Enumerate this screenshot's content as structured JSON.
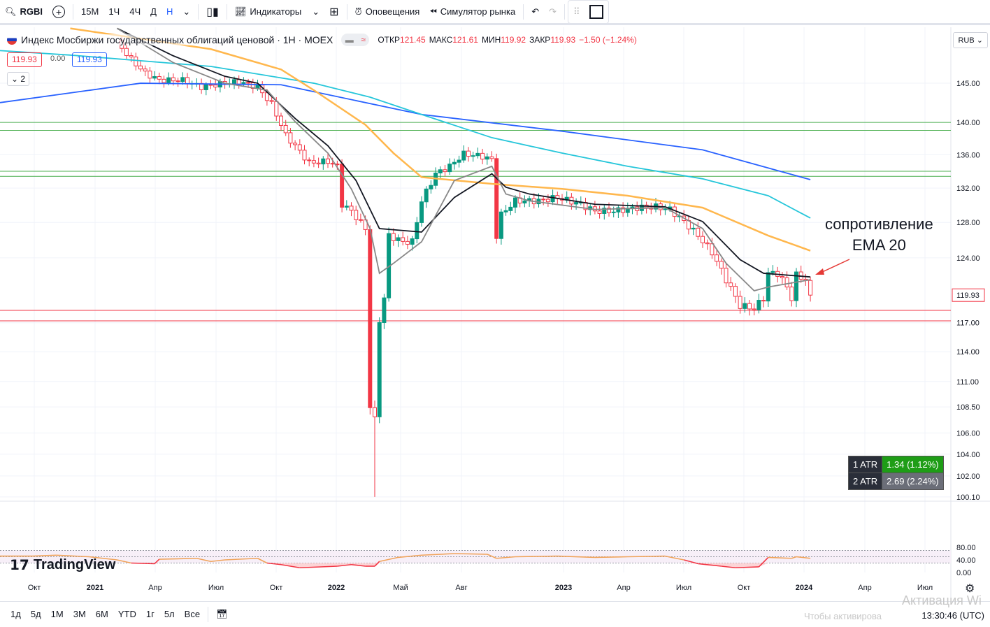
{
  "toolbar": {
    "symbol": "RGBI",
    "intervals": [
      "15M",
      "1Ч",
      "4Ч",
      "Д",
      "Н"
    ],
    "active_interval": "Н",
    "indicators": "Индикаторы",
    "alerts": "Оповещения",
    "replay": "Симулятор рынка"
  },
  "legend": {
    "title": "Индекс Мосбиржи государственных облигаций ценовой · 1Н · MOEX",
    "open_label": "ОТКР",
    "open": "121.45",
    "high_label": "МАКС",
    "high": "121.61",
    "low_label": "МИН",
    "low": "119.92",
    "close_label": "ЗАКР",
    "close": "119.93",
    "change": "−1.50 (−1.24%)",
    "sell": "119.93",
    "spread": "0.00",
    "buy": "119.93",
    "collapse": "2",
    "currency": "RUB"
  },
  "price_axis": [
    "145.00",
    "140.00",
    "136.00",
    "132.00",
    "128.00",
    "124.00",
    "117.00",
    "114.00",
    "111.00",
    "108.50",
    "106.00",
    "104.00",
    "102.00",
    "100.10"
  ],
  "price_axis_values": [
    145,
    140,
    136,
    132,
    128,
    124,
    117,
    114,
    111,
    108.5,
    106,
    104,
    102,
    100.1
  ],
  "last_price": "119.93",
  "rsi_axis": [
    "80.00",
    "40.00",
    "0.00"
  ],
  "time_axis": [
    "Окт",
    "2021",
    "Апр",
    "Июл",
    "Окт",
    "2022",
    "Май",
    "Авг",
    "2023",
    "Апр",
    "Июл",
    "Окт",
    "2024",
    "Апр",
    "Июл"
  ],
  "atr": [
    {
      "label": "1 ATR",
      "value": "1.34 (1.12%)",
      "color": "#1e9d16"
    },
    {
      "label": "2 ATR",
      "value": "2.69 (2.24%)",
      "color": "#6b6e78"
    }
  ],
  "annotation": [
    "сопротивление",
    "EMA 20"
  ],
  "brand": "TradingView",
  "bottom": {
    "ranges": [
      "1д",
      "5д",
      "1М",
      "3М",
      "6М",
      "YTD",
      "1г",
      "5л",
      "Все"
    ],
    "clock": "13:30:46 (UTC)"
  },
  "watermark": [
    "Активация Wi",
    "Чтобы активирова"
  ],
  "colors": {
    "up": "#089981",
    "down": "#f23645",
    "ema200": "#2962ff",
    "ema100": "#26c6da",
    "ema50": "#ffb74d",
    "ema20": "#131722",
    "ema10": "#888888"
  },
  "chart_data": {
    "type": "candlestick",
    "closes_keypoints": [
      [
        25,
        150.4
      ],
      [
        28,
        148.1
      ],
      [
        31,
        146.3
      ],
      [
        34,
        145.4
      ],
      [
        39,
        145.4
      ],
      [
        43,
        144.5
      ],
      [
        48,
        145
      ],
      [
        51,
        145.2
      ],
      [
        55,
        144.5
      ],
      [
        58,
        142.3
      ],
      [
        61,
        138.4
      ],
      [
        63,
        137.1
      ],
      [
        66,
        135
      ],
      [
        70,
        135.2
      ],
      [
        72,
        134.6
      ],
      [
        73,
        130.1
      ],
      [
        75,
        129.3
      ],
      [
        78,
        127.3
      ],
      [
        79,
        108.6
      ],
      [
        80,
        107.2
      ],
      [
        81,
        117.3
      ],
      [
        82,
        119.6
      ],
      [
        83,
        126.5
      ],
      [
        86,
        125.8
      ],
      [
        88,
        125.8
      ],
      [
        90,
        130.5
      ],
      [
        93,
        133.7
      ],
      [
        96,
        134.6
      ],
      [
        99,
        136.1
      ],
      [
        103,
        135.8
      ],
      [
        105,
        135.4
      ],
      [
        106,
        126.5
      ],
      [
        107,
        128.9
      ],
      [
        110,
        130.5
      ],
      [
        115,
        130.5
      ],
      [
        119,
        130.9
      ],
      [
        124,
        130.1
      ],
      [
        127,
        129.3
      ],
      [
        131,
        129.3
      ],
      [
        136,
        129.7
      ],
      [
        140,
        129.8
      ],
      [
        143,
        129.5
      ],
      [
        146,
        128.1
      ],
      [
        149,
        126.5
      ],
      [
        152,
        124.6
      ],
      [
        155,
        121.6
      ],
      [
        158,
        118.8
      ],
      [
        161,
        118.5
      ],
      [
        163,
        119.6
      ],
      [
        164,
        122.3
      ],
      [
        166,
        122.3
      ],
      [
        168,
        120.8
      ],
      [
        169,
        119.6
      ],
      [
        170,
        122.1
      ],
      [
        172,
        121.6
      ],
      [
        173,
        119.93
      ]
    ],
    "extreme_low": 100.1,
    "ema_lines": {
      "ema200": [
        [
          0,
          142.5
        ],
        [
          30,
          145
        ],
        [
          60,
          144.8
        ],
        [
          90,
          141
        ],
        [
          120,
          138.9
        ],
        [
          150,
          136.6
        ],
        [
          173,
          133
        ]
      ],
      "ema100": [
        [
          0,
          149.3
        ],
        [
          15,
          148.7
        ],
        [
          45,
          147.2
        ],
        [
          67,
          145
        ],
        [
          79,
          143.2
        ],
        [
          90,
          141
        ],
        [
          105,
          138.1
        ],
        [
          120,
          136.2
        ],
        [
          134,
          134.6
        ],
        [
          150,
          133.1
        ],
        [
          164,
          131.1
        ],
        [
          173,
          128.5
        ]
      ],
      "ema50": [
        [
          15,
          152.3
        ],
        [
          30,
          150.9
        ],
        [
          45,
          149.5
        ],
        [
          60,
          146.8
        ],
        [
          67,
          144.1
        ],
        [
          78,
          139.7
        ],
        [
          84,
          136.2
        ],
        [
          90,
          133.3
        ],
        [
          105,
          132.5
        ],
        [
          120,
          131.9
        ],
        [
          134,
          131.1
        ],
        [
          150,
          129.7
        ],
        [
          164,
          126.5
        ],
        [
          173,
          124.8
        ]
      ],
      "ema20": [
        [
          25,
          152.3
        ],
        [
          37,
          148.6
        ],
        [
          48,
          145.9
        ],
        [
          55,
          145
        ],
        [
          63,
          140.5
        ],
        [
          70,
          137.1
        ],
        [
          76,
          132.9
        ],
        [
          81,
          127.3
        ],
        [
          90,
          126.9
        ],
        [
          97,
          130.9
        ],
        [
          105,
          133.7
        ],
        [
          108,
          132.1
        ],
        [
          113,
          131.3
        ],
        [
          127,
          130.1
        ],
        [
          142,
          129.8
        ],
        [
          150,
          128.1
        ],
        [
          158,
          123.8
        ],
        [
          163,
          122.3
        ],
        [
          173,
          121.9
        ]
      ],
      "ema10": [
        [
          25,
          152.3
        ],
        [
          37,
          147.7
        ],
        [
          48,
          145
        ],
        [
          57,
          144.1
        ],
        [
          63,
          140.1
        ],
        [
          70,
          136.2
        ],
        [
          75,
          131.9
        ],
        [
          79,
          127.3
        ],
        [
          81,
          122.3
        ],
        [
          84,
          123.4
        ],
        [
          90,
          125.8
        ],
        [
          97,
          132.9
        ],
        [
          105,
          134.6
        ],
        [
          108,
          131.3
        ],
        [
          113,
          130.5
        ],
        [
          127,
          129.5
        ],
        [
          142,
          129.7
        ],
        [
          150,
          127.3
        ],
        [
          155,
          123.4
        ],
        [
          161,
          120.4
        ],
        [
          164,
          120.8
        ],
        [
          173,
          121.6
        ]
      ]
    },
    "levels": {
      "support_green": [
        140.0,
        139.0,
        134.0,
        133.4
      ],
      "support_red": [
        118.3,
        117.2
      ]
    },
    "rsi": {
      "bands": [
        70,
        30
      ],
      "points": [
        [
          0,
          52
        ],
        [
          7,
          52
        ],
        [
          12,
          55
        ],
        [
          19,
          50
        ],
        [
          25,
          40
        ],
        [
          28,
          30
        ],
        [
          33,
          28
        ],
        [
          34,
          42
        ],
        [
          42,
          45
        ],
        [
          45,
          35
        ],
        [
          48,
          40
        ],
        [
          55,
          45
        ],
        [
          57,
          30
        ],
        [
          60,
          25
        ],
        [
          64,
          15
        ],
        [
          72,
          20
        ],
        [
          75,
          25
        ],
        [
          78,
          20
        ],
        [
          80,
          20
        ],
        [
          81,
          35
        ],
        [
          85,
          48
        ],
        [
          90,
          55
        ],
        [
          97,
          60
        ],
        [
          104,
          58
        ],
        [
          106,
          45
        ],
        [
          110,
          50
        ],
        [
          119,
          52
        ],
        [
          127,
          48
        ],
        [
          134,
          50
        ],
        [
          142,
          52
        ],
        [
          146,
          40
        ],
        [
          149,
          28
        ],
        [
          154,
          20
        ],
        [
          157,
          15
        ],
        [
          162,
          18
        ],
        [
          164,
          48
        ],
        [
          169,
          45
        ],
        [
          170,
          50
        ],
        [
          173,
          45
        ]
      ]
    }
  }
}
